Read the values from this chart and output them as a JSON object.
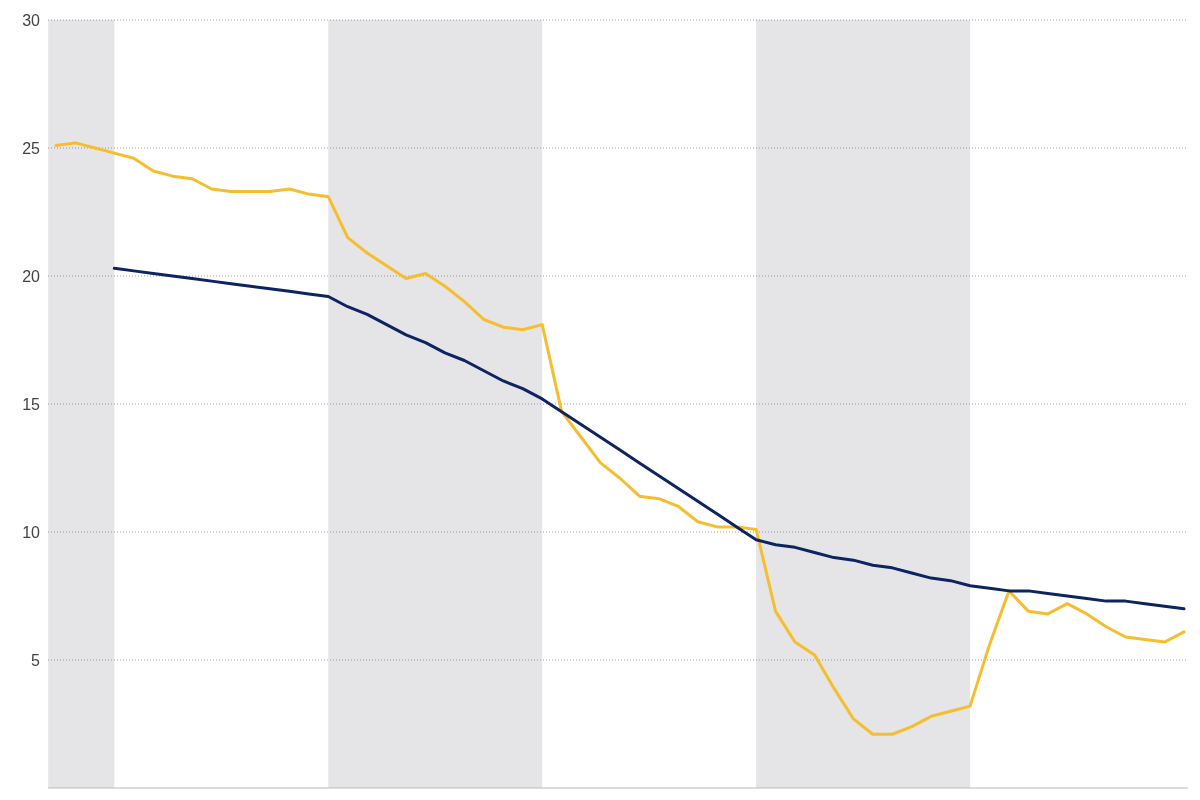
{
  "chart_data": {
    "type": "line",
    "categories": [
      null,
      null,
      null,
      null,
      null,
      null,
      null,
      null,
      null,
      null,
      null,
      null,
      null,
      null,
      null,
      null,
      null,
      null,
      null,
      null,
      null,
      null,
      null,
      null,
      null,
      null,
      null,
      null,
      null,
      null,
      null,
      null,
      null,
      null,
      null,
      null,
      null,
      null,
      null,
      null,
      null,
      null,
      null,
      null,
      null,
      null,
      null,
      null,
      null,
      null,
      null,
      null,
      null,
      null,
      null,
      null,
      null,
      null,
      null
    ],
    "series": [
      {
        "color": "#f5be2e",
        "values": [
          25.1,
          25.2,
          25.0,
          24.8,
          24.6,
          24.1,
          23.9,
          23.8,
          23.4,
          23.3,
          23.3,
          23.3,
          23.4,
          23.2,
          23.1,
          21.5,
          20.9,
          20.4,
          19.9,
          20.1,
          19.6,
          19.0,
          18.3,
          18.0,
          17.9,
          18.1,
          14.7,
          13.7,
          12.7,
          12.1,
          11.4,
          11.3,
          11.0,
          10.4,
          10.2,
          10.2,
          10.1,
          6.9,
          5.7,
          5.2,
          3.9,
          2.7,
          2.1,
          2.1,
          2.4,
          2.8,
          3.0,
          3.2,
          5.6,
          7.7,
          6.9,
          6.8,
          7.2,
          6.8,
          6.3,
          5.9,
          5.8,
          5.7,
          6.1
        ]
      },
      {
        "color": "#0d2461",
        "values": [
          null,
          null,
          null,
          20.3,
          20.2,
          20.1,
          20.0,
          19.9,
          19.8,
          19.7,
          19.6,
          19.5,
          19.4,
          19.3,
          19.2,
          18.8,
          18.5,
          18.1,
          17.7,
          17.4,
          17.0,
          16.7,
          16.3,
          15.9,
          15.6,
          15.2,
          14.7,
          14.2,
          13.7,
          13.2,
          12.7,
          12.2,
          11.7,
          11.2,
          10.7,
          10.2,
          9.7,
          9.5,
          9.4,
          9.2,
          9.0,
          8.9,
          8.7,
          8.6,
          8.4,
          8.2,
          8.1,
          7.9,
          7.8,
          7.7,
          7.7,
          7.6,
          7.5,
          7.4,
          7.3,
          7.3,
          7.2,
          7.1,
          7.0
        ]
      }
    ],
    "ylim": [
      0,
      30
    ],
    "yticks": [
      5,
      10,
      15,
      20,
      25,
      30
    ],
    "grid": "y",
    "tick_labels": "y",
    "marker": "none",
    "line_style": "solid"
  }
}
